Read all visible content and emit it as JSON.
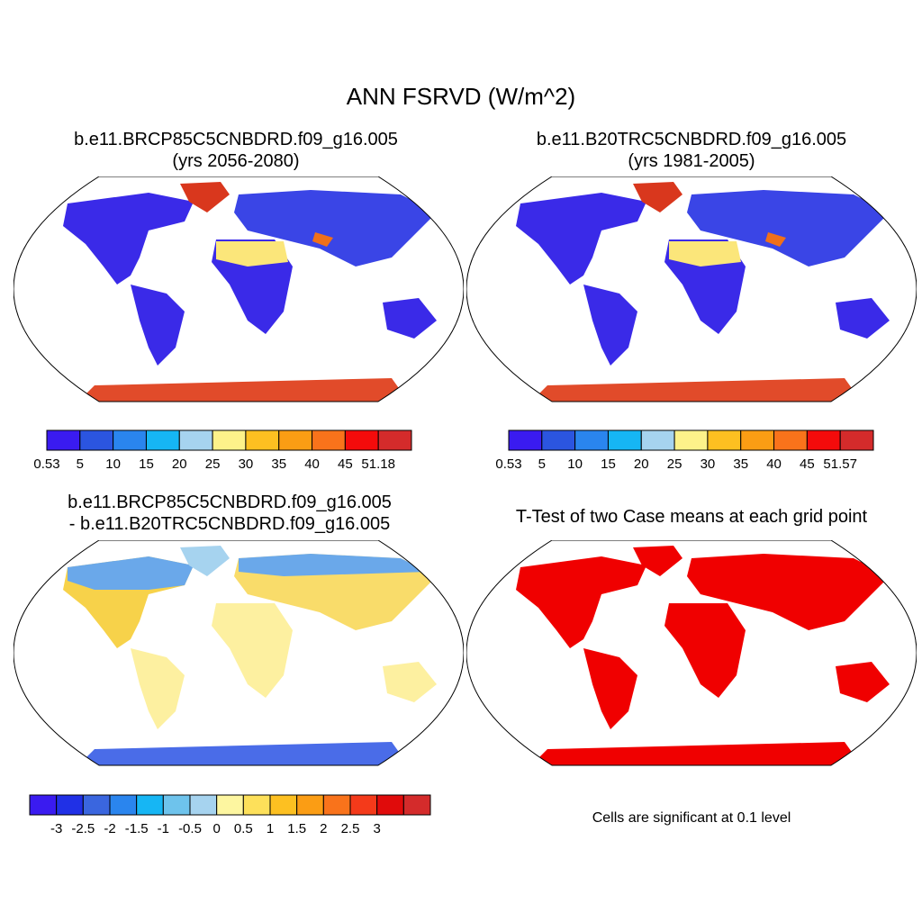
{
  "title": "ANN FSRVD (W/m^2)",
  "panels": [
    {
      "id": "p1",
      "line1": "b.e11.BRCP85C5CNBDRD.f09_g16.005",
      "line2": "(yrs 2056-2080)",
      "colorbar": {
        "colors": [
          "#3a1bf0",
          "#2b55e0",
          "#2a85ee",
          "#16b6f4",
          "#a6d3ef",
          "#fdf28a",
          "#fdc021",
          "#fb9d14",
          "#f9731b",
          "#f40b0b",
          "#d42b2b"
        ],
        "labels": [
          "0.53",
          "5",
          "10",
          "15",
          "20",
          "25",
          "30",
          "35",
          "40",
          "45",
          "51.18"
        ]
      }
    },
    {
      "id": "p2",
      "line1": "b.e11.B20TRC5CNBDRD.f09_g16.005",
      "line2": "(yrs 1981-2005)",
      "colorbar": {
        "colors": [
          "#3a1bf0",
          "#2b55e0",
          "#2a85ee",
          "#16b6f4",
          "#a6d3ef",
          "#fdf28a",
          "#fdc021",
          "#fb9d14",
          "#f9731b",
          "#f40b0b",
          "#d42b2b"
        ],
        "labels": [
          "0.53",
          "5",
          "10",
          "15",
          "20",
          "25",
          "30",
          "35",
          "40",
          "45",
          "51.57"
        ]
      }
    },
    {
      "id": "p3",
      "line1": "b.e11.BRCP85C5CNBDRD.f09_g16.005",
      "line2": "- b.e11.B20TRC5CNBDRD.f09_g16.005",
      "colorbar": {
        "colors": [
          "#3a1bf0",
          "#2030e6",
          "#3a66df",
          "#2a85ee",
          "#16b6f4",
          "#6ec3ec",
          "#a6d3ef",
          "#fdf6a0",
          "#fde05a",
          "#fdc021",
          "#fb9d14",
          "#f9731b",
          "#f43a1a",
          "#e00b0b",
          "#d42b2b"
        ],
        "labels": [
          "-3",
          "-2.5",
          "-2",
          "-1.5",
          "-1",
          "-0.5",
          "0",
          "0.5",
          "1",
          "1.5",
          "2",
          "2.5",
          "3"
        ]
      }
    },
    {
      "id": "p4",
      "line1": "T-Test of two Case means at each grid point",
      "line2": "",
      "note": "Cells are significant at 0.1 level"
    }
  ]
}
